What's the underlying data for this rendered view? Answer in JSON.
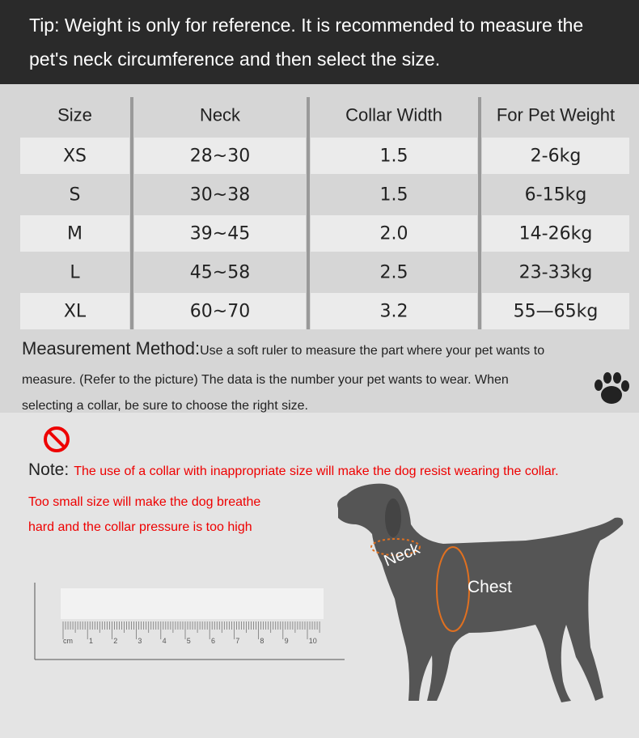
{
  "tip": {
    "lines": [
      "Tip: Weight is only for reference. It is recommended to measure the",
      "pet's neck circumference and then select the size."
    ]
  },
  "table": {
    "headers": [
      "Size",
      "Neck",
      "Collar Width",
      "For Pet Weight"
    ],
    "rows": [
      [
        "XS",
        "28~30",
        "1.5",
        "2-6kg"
      ],
      [
        "S",
        "30~38",
        "1.5",
        "6-15kg"
      ],
      [
        "M",
        "39~45",
        "2.0",
        "14-26kg"
      ],
      [
        "L",
        "45~58",
        "2.5",
        "23-33kg"
      ],
      [
        "XL",
        "60~70",
        "3.2",
        "55—65kg"
      ]
    ]
  },
  "measurement": {
    "label": "Measurement Method:",
    "lines": [
      "Use a soft ruler to measure the part where your pet wants to",
      "measure. (Refer to the picture) The data is the number your pet wants to wear. When",
      "selecting a collar, be sure to choose the right size."
    ]
  },
  "note": {
    "label": "Note:",
    "lines": [
      "The use of a collar with inappropriate size will make the dog resist wearing the collar.",
      "Too small size will make the dog breathe",
      "hard and the collar pressure is too high"
    ]
  },
  "diagram": {
    "neck": "Neck",
    "chest": "Chest"
  },
  "ruler": {
    "unit": "cm",
    "labels": [
      "1",
      "2",
      "3",
      "4",
      "5",
      "6",
      "7",
      "8",
      "9",
      "10"
    ]
  }
}
